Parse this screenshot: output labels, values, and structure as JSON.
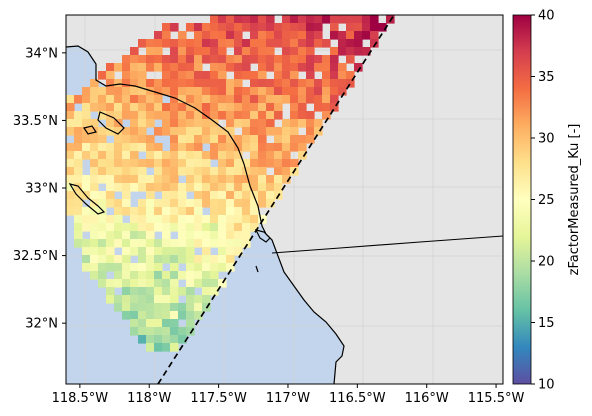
{
  "map": {
    "lon_range": [
      -118.6,
      -115.45
    ],
    "lat_range": [
      31.55,
      34.28
    ],
    "x_ticks": [
      {
        "value": -118.5,
        "label": "118.5°W"
      },
      {
        "value": -118.0,
        "label": "118°W"
      },
      {
        "value": -117.5,
        "label": "117.5°W"
      },
      {
        "value": -117.0,
        "label": "117°W"
      },
      {
        "value": -116.5,
        "label": "116.5°W"
      },
      {
        "value": -116.0,
        "label": "116°W"
      },
      {
        "value": -115.5,
        "label": "115.5°W"
      }
    ],
    "y_ticks": [
      {
        "value": 32.0,
        "label": "32°N"
      },
      {
        "value": 32.5,
        "label": "32.5°N"
      },
      {
        "value": 33.0,
        "label": "33°N"
      },
      {
        "value": 33.5,
        "label": "33.5°N"
      },
      {
        "value": 34.0,
        "label": "34°N"
      }
    ],
    "gridlines": true,
    "colors": {
      "land": "#e5e5e5",
      "ocean": "#c3d5ec",
      "coastline": "#000000",
      "swath_edge": "#000000",
      "grid": "#cccccc"
    }
  },
  "colorbar": {
    "label": "zFactorMeasured_Ku [-]",
    "min": 10,
    "max": 40,
    "ticks": [
      {
        "value": 10,
        "label": "10"
      },
      {
        "value": 15,
        "label": "15"
      },
      {
        "value": 20,
        "label": "20"
      },
      {
        "value": 25,
        "label": "25"
      },
      {
        "value": 30,
        "label": "30"
      },
      {
        "value": 35,
        "label": "35"
      },
      {
        "value": 40,
        "label": "40"
      }
    ],
    "colormap": "Spectral_r"
  }
}
